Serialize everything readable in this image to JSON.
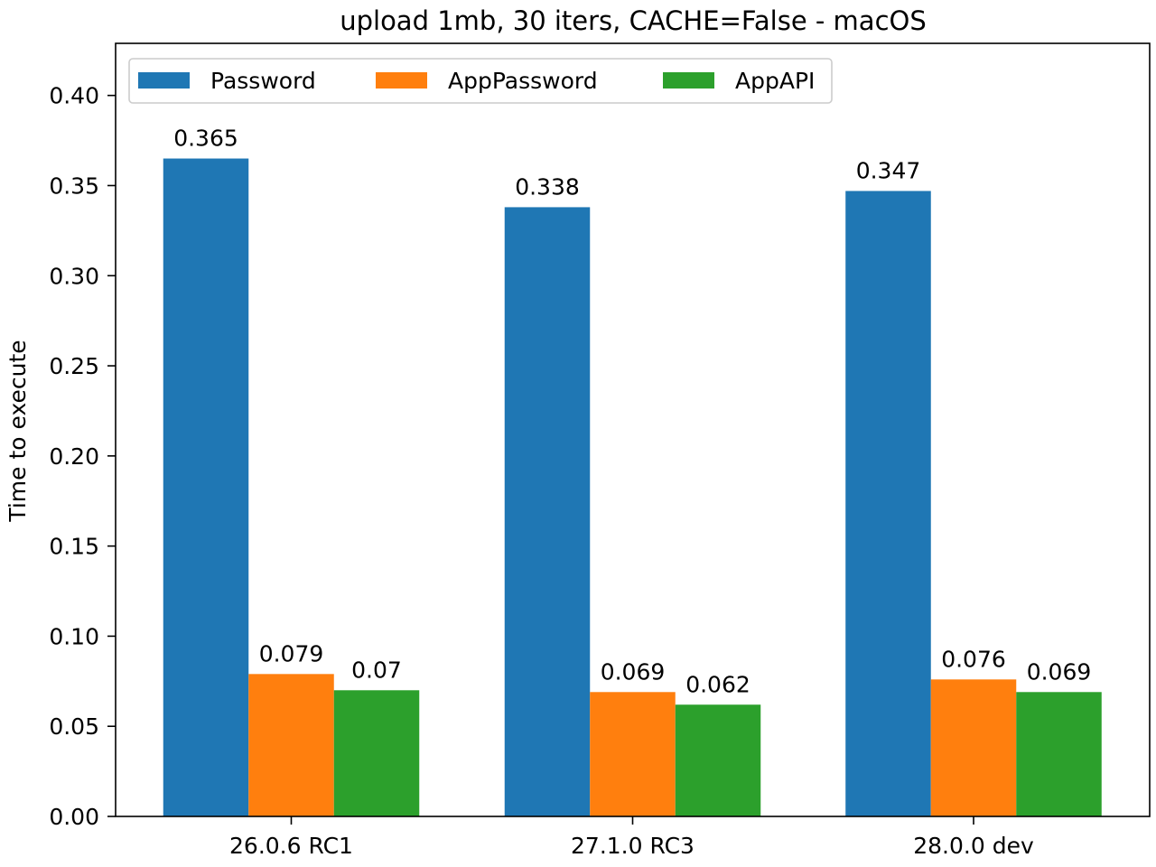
{
  "chart_data": {
    "type": "bar",
    "title": "upload 1mb, 30 iters, CACHE=False - macOS",
    "xlabel": "",
    "ylabel": "Time to execute",
    "categories": [
      "26.0.6 RC1",
      "27.1.0 RC3",
      "28.0.0 dev"
    ],
    "series": [
      {
        "name": "Password",
        "color": "#1f77b4",
        "values": [
          0.365,
          0.338,
          0.347
        ],
        "labels": [
          "0.365",
          "0.338",
          "0.347"
        ]
      },
      {
        "name": "AppPassword",
        "color": "#ff7f0e",
        "values": [
          0.079,
          0.069,
          0.076
        ],
        "labels": [
          "0.079",
          "0.069",
          "0.076"
        ]
      },
      {
        "name": "AppAPI",
        "color": "#2ca02c",
        "values": [
          0.07,
          0.062,
          0.069
        ],
        "labels": [
          "0.07",
          "0.062",
          "0.069"
        ]
      }
    ],
    "ylim": [
      0,
      0.4289
    ],
    "yticks": [
      {
        "value": 0.0,
        "label": "0.00"
      },
      {
        "value": 0.05,
        "label": "0.05"
      },
      {
        "value": 0.1,
        "label": "0.10"
      },
      {
        "value": 0.15,
        "label": "0.15"
      },
      {
        "value": 0.2,
        "label": "0.20"
      },
      {
        "value": 0.25,
        "label": "0.25"
      },
      {
        "value": 0.3,
        "label": "0.30"
      },
      {
        "value": 0.35,
        "label": "0.35"
      },
      {
        "value": 0.4,
        "label": "0.40"
      }
    ],
    "grid": false,
    "legend_position": "top-left"
  }
}
